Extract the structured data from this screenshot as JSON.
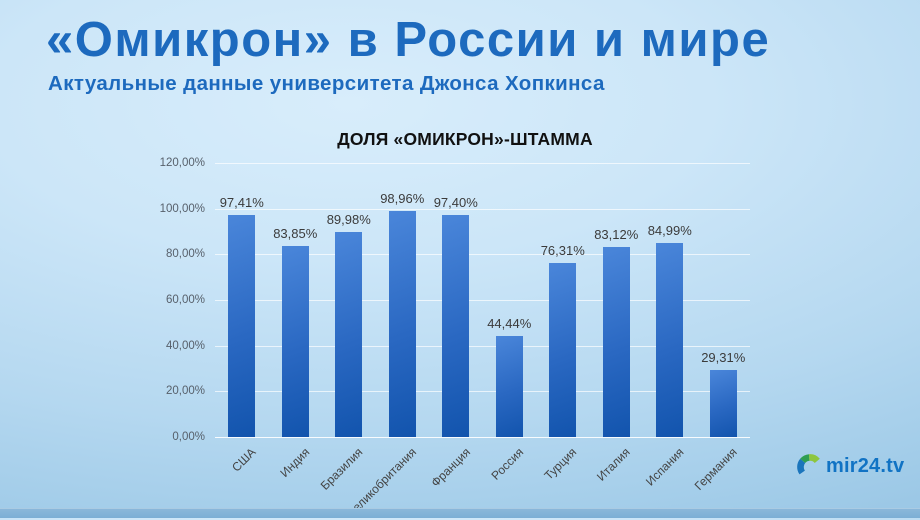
{
  "header": {
    "title": "«Омикрон» в России и мире",
    "subtitle": "Актуальные данные университета Джонса Хопкинса",
    "accent_color": "#1d6abe"
  },
  "chart_data": {
    "type": "bar",
    "title": "ДОЛЯ «ОМИКРОН»-ШТАММА",
    "categories": [
      "США",
      "Индия",
      "Бразилия",
      "Великобритания",
      "Франция",
      "Россия",
      "Турция",
      "Италия",
      "Испания",
      "Германия"
    ],
    "values": [
      97.41,
      83.85,
      89.98,
      98.96,
      97.4,
      44.44,
      76.31,
      83.12,
      84.99,
      29.31
    ],
    "value_labels": [
      "97,41%",
      "83,85%",
      "89,98%",
      "98,96%",
      "97,40%",
      "44,44%",
      "76,31%",
      "83,12%",
      "84,99%",
      "29,31%"
    ],
    "ylim": [
      0,
      120
    ],
    "ytick_step": 20,
    "yticks": [
      "0,00%",
      "20,00%",
      "40,00%",
      "60,00%",
      "80,00%",
      "100,00%",
      "120,00%"
    ],
    "grid": true,
    "legend": "none",
    "bar_color_top": "#4a86da",
    "bar_color_mid": "#2a68c2",
    "bar_color_bottom": "#1254ad"
  },
  "logo": {
    "text": "mir24.tv",
    "text_color": "#1173c4",
    "arc_blue": "#1b75bc",
    "arc_green": "#2e9e52",
    "arc_light_green": "#8dc63f"
  }
}
